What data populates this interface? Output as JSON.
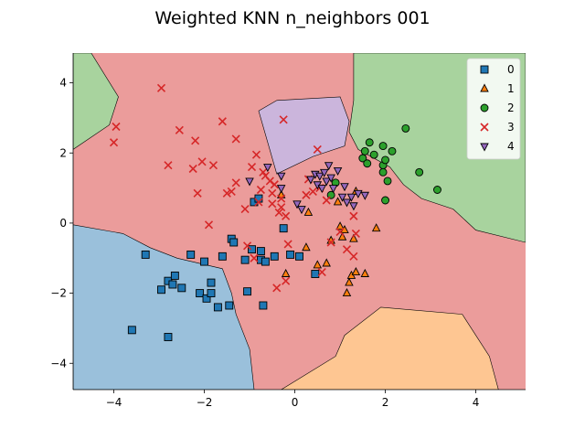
{
  "chart_data": {
    "type": "scatter",
    "title": "Weighted KNN n_neighbors 001",
    "xlabel": "",
    "ylabel": "",
    "xlim": [
      -4.9,
      5.1
    ],
    "ylim": [
      -4.75,
      4.85
    ],
    "x_ticks": [
      -4,
      -2,
      0,
      2,
      4
    ],
    "y_ticks": [
      -4,
      -2,
      0,
      2,
      4
    ],
    "grid": false,
    "legend_position": "top-right",
    "region_colors": {
      "0": "#9ac0db",
      "1": "#fec692",
      "2": "#a8d39e",
      "3": "#eb9c9b",
      "4": "#cbb5dc"
    },
    "decision_regions": [
      {
        "class": "3",
        "polygon": [
          [
            -4.9,
            4.85
          ],
          [
            5.1,
            4.85
          ],
          [
            5.1,
            -4.75
          ],
          [
            -4.9,
            -4.75
          ]
        ]
      },
      {
        "class": "2",
        "polygon": [
          [
            -4.9,
            4.85
          ],
          [
            -4.5,
            4.85
          ],
          [
            -3.9,
            3.6
          ],
          [
            -4.1,
            2.8
          ],
          [
            -4.9,
            2.1
          ]
        ]
      },
      {
        "class": "2",
        "polygon": [
          [
            1.3,
            4.85
          ],
          [
            5.1,
            4.85
          ],
          [
            5.1,
            -0.55
          ],
          [
            4.0,
            -0.2
          ],
          [
            3.5,
            0.4
          ],
          [
            2.8,
            0.7
          ],
          [
            2.4,
            1.1
          ],
          [
            2.1,
            1.6
          ],
          [
            1.4,
            2.1
          ],
          [
            1.2,
            2.6
          ],
          [
            1.3,
            3.5
          ]
        ]
      },
      {
        "class": "4",
        "polygon": [
          [
            -0.8,
            3.2
          ],
          [
            -0.4,
            3.5
          ],
          [
            1.0,
            3.6
          ],
          [
            1.2,
            2.9
          ],
          [
            1.1,
            2.2
          ],
          [
            0.4,
            1.9
          ],
          [
            -0.4,
            1.4
          ]
        ]
      },
      {
        "class": "0",
        "polygon": [
          [
            -4.9,
            -0.05
          ],
          [
            -3.8,
            -0.3
          ],
          [
            -3.2,
            -0.7
          ],
          [
            -2.6,
            -1.0
          ],
          [
            -1.6,
            -1.3
          ],
          [
            -1.4,
            -2.0
          ],
          [
            -1.3,
            -2.6
          ],
          [
            -1.0,
            -3.6
          ],
          [
            -0.9,
            -4.75
          ],
          [
            -4.9,
            -4.75
          ]
        ]
      },
      {
        "class": "1",
        "polygon": [
          [
            -0.3,
            -4.75
          ],
          [
            0.9,
            -3.8
          ],
          [
            1.1,
            -3.2
          ],
          [
            1.9,
            -2.4
          ],
          [
            3.7,
            -2.6
          ],
          [
            4.3,
            -3.8
          ],
          [
            4.5,
            -4.75
          ]
        ]
      }
    ],
    "series": [
      {
        "name": "0",
        "marker": "square",
        "color": "#1f77b4",
        "points": [
          [
            -3.3,
            -0.9
          ],
          [
            -3.6,
            -3.05
          ],
          [
            -2.8,
            -3.25
          ],
          [
            -2.95,
            -1.9
          ],
          [
            -2.8,
            -1.65
          ],
          [
            -2.65,
            -1.5
          ],
          [
            -2.7,
            -1.75
          ],
          [
            -2.5,
            -1.85
          ],
          [
            -2.3,
            -0.9
          ],
          [
            -2.1,
            -2.0
          ],
          [
            -2.0,
            -1.1
          ],
          [
            -1.95,
            -2.15
          ],
          [
            -1.85,
            -1.7
          ],
          [
            -1.85,
            -2.0
          ],
          [
            -1.7,
            -2.4
          ],
          [
            -1.6,
            -0.95
          ],
          [
            -1.45,
            -2.35
          ],
          [
            -1.4,
            -0.45
          ],
          [
            -1.35,
            -0.55
          ],
          [
            -1.1,
            -1.05
          ],
          [
            -1.05,
            -1.95
          ],
          [
            -0.95,
            -0.75
          ],
          [
            -0.9,
            0.6
          ],
          [
            -0.8,
            0.7
          ],
          [
            -0.75,
            -0.8
          ],
          [
            -0.75,
            -1.05
          ],
          [
            -0.7,
            -2.35
          ],
          [
            -0.65,
            -1.1
          ],
          [
            -0.45,
            -0.95
          ],
          [
            -0.25,
            -0.15
          ],
          [
            -0.1,
            -0.9
          ],
          [
            0.1,
            -0.95
          ],
          [
            0.45,
            -1.45
          ]
        ]
      },
      {
        "name": "1",
        "marker": "triangle-up",
        "color": "#ff7f0e",
        "points": [
          [
            -0.3,
            0.8
          ],
          [
            0.25,
            -0.7
          ],
          [
            -0.2,
            -1.45
          ],
          [
            0.3,
            0.3
          ],
          [
            0.5,
            -1.2
          ],
          [
            0.7,
            -1.15
          ],
          [
            0.8,
            -0.5
          ],
          [
            0.95,
            0.6
          ],
          [
            1.0,
            -0.1
          ],
          [
            1.05,
            -0.4
          ],
          [
            1.1,
            -0.2
          ],
          [
            1.15,
            -2.0
          ],
          [
            1.2,
            -1.7
          ],
          [
            1.25,
            -1.5
          ],
          [
            1.35,
            -1.4
          ],
          [
            1.55,
            -1.45
          ],
          [
            1.3,
            -0.45
          ],
          [
            1.35,
            0.9
          ],
          [
            1.8,
            -0.15
          ]
        ]
      },
      {
        "name": "2",
        "marker": "circle",
        "color": "#2ca02c",
        "points": [
          [
            0.8,
            0.8
          ],
          [
            0.9,
            1.15
          ],
          [
            1.5,
            1.85
          ],
          [
            1.55,
            2.05
          ],
          [
            1.6,
            1.7
          ],
          [
            1.65,
            2.3
          ],
          [
            1.75,
            1.95
          ],
          [
            1.95,
            1.65
          ],
          [
            1.95,
            1.45
          ],
          [
            1.95,
            2.2
          ],
          [
            2.0,
            1.8
          ],
          [
            2.0,
            0.65
          ],
          [
            2.05,
            1.2
          ],
          [
            2.15,
            2.05
          ],
          [
            2.45,
            2.7
          ],
          [
            2.75,
            1.45
          ],
          [
            3.15,
            0.95
          ]
        ]
      },
      {
        "name": "3",
        "marker": "x",
        "color": "#d62728",
        "points": [
          [
            -4.0,
            2.3
          ],
          [
            -3.95,
            2.75
          ],
          [
            -2.95,
            3.85
          ],
          [
            -2.8,
            1.65
          ],
          [
            -2.55,
            2.65
          ],
          [
            -2.25,
            1.55
          ],
          [
            -2.2,
            2.35
          ],
          [
            -2.15,
            0.85
          ],
          [
            -2.05,
            1.75
          ],
          [
            -1.9,
            -0.05
          ],
          [
            -1.8,
            1.65
          ],
          [
            -1.6,
            2.9
          ],
          [
            -1.5,
            0.85
          ],
          [
            -1.4,
            0.9
          ],
          [
            -1.3,
            2.4
          ],
          [
            -1.3,
            1.15
          ],
          [
            -1.1,
            0.4
          ],
          [
            -1.05,
            -0.65
          ],
          [
            -0.95,
            1.6
          ],
          [
            -0.9,
            -1.0
          ],
          [
            -0.85,
            1.95
          ],
          [
            -0.8,
            0.6
          ],
          [
            -0.75,
            0.95
          ],
          [
            -0.7,
            1.45
          ],
          [
            -0.65,
            1.35
          ],
          [
            -0.55,
            1.2
          ],
          [
            -0.5,
            0.85
          ],
          [
            -0.5,
            0.55
          ],
          [
            -0.45,
            1.1
          ],
          [
            -0.4,
            -1.85
          ],
          [
            -0.35,
            0.3
          ],
          [
            -0.3,
            0.7
          ],
          [
            -0.3,
            0.45
          ],
          [
            -0.25,
            2.95
          ],
          [
            -0.2,
            0.2
          ],
          [
            -0.2,
            -1.65
          ],
          [
            -0.15,
            -0.6
          ],
          [
            0.25,
            0.8
          ],
          [
            0.3,
            1.25
          ],
          [
            0.4,
            0.9
          ],
          [
            0.5,
            2.1
          ],
          [
            0.55,
            1.0
          ],
          [
            0.6,
            -1.4
          ],
          [
            0.7,
            0.65
          ],
          [
            0.8,
            -0.55
          ],
          [
            1.0,
            -0.25
          ],
          [
            1.15,
            -0.75
          ],
          [
            1.3,
            -0.95
          ],
          [
            1.3,
            0.2
          ],
          [
            1.35,
            -0.3
          ]
        ]
      },
      {
        "name": "4",
        "marker": "triangle-down",
        "color": "#9467bd",
        "points": [
          [
            -1.0,
            1.2
          ],
          [
            -0.6,
            1.6
          ],
          [
            -0.3,
            1.35
          ],
          [
            -0.3,
            1.0
          ],
          [
            0.05,
            0.55
          ],
          [
            0.15,
            0.4
          ],
          [
            0.35,
            1.25
          ],
          [
            0.45,
            1.4
          ],
          [
            0.5,
            1.1
          ],
          [
            0.55,
            1.35
          ],
          [
            0.6,
            1.0
          ],
          [
            0.65,
            1.45
          ],
          [
            0.7,
            1.2
          ],
          [
            0.75,
            1.65
          ],
          [
            0.8,
            1.3
          ],
          [
            0.85,
            1.0
          ],
          [
            0.95,
            1.5
          ],
          [
            1.05,
            0.75
          ],
          [
            1.1,
            1.05
          ],
          [
            1.15,
            0.6
          ],
          [
            1.25,
            0.75
          ],
          [
            1.3,
            0.5
          ],
          [
            1.4,
            0.85
          ],
          [
            1.55,
            0.8
          ]
        ]
      }
    ]
  }
}
